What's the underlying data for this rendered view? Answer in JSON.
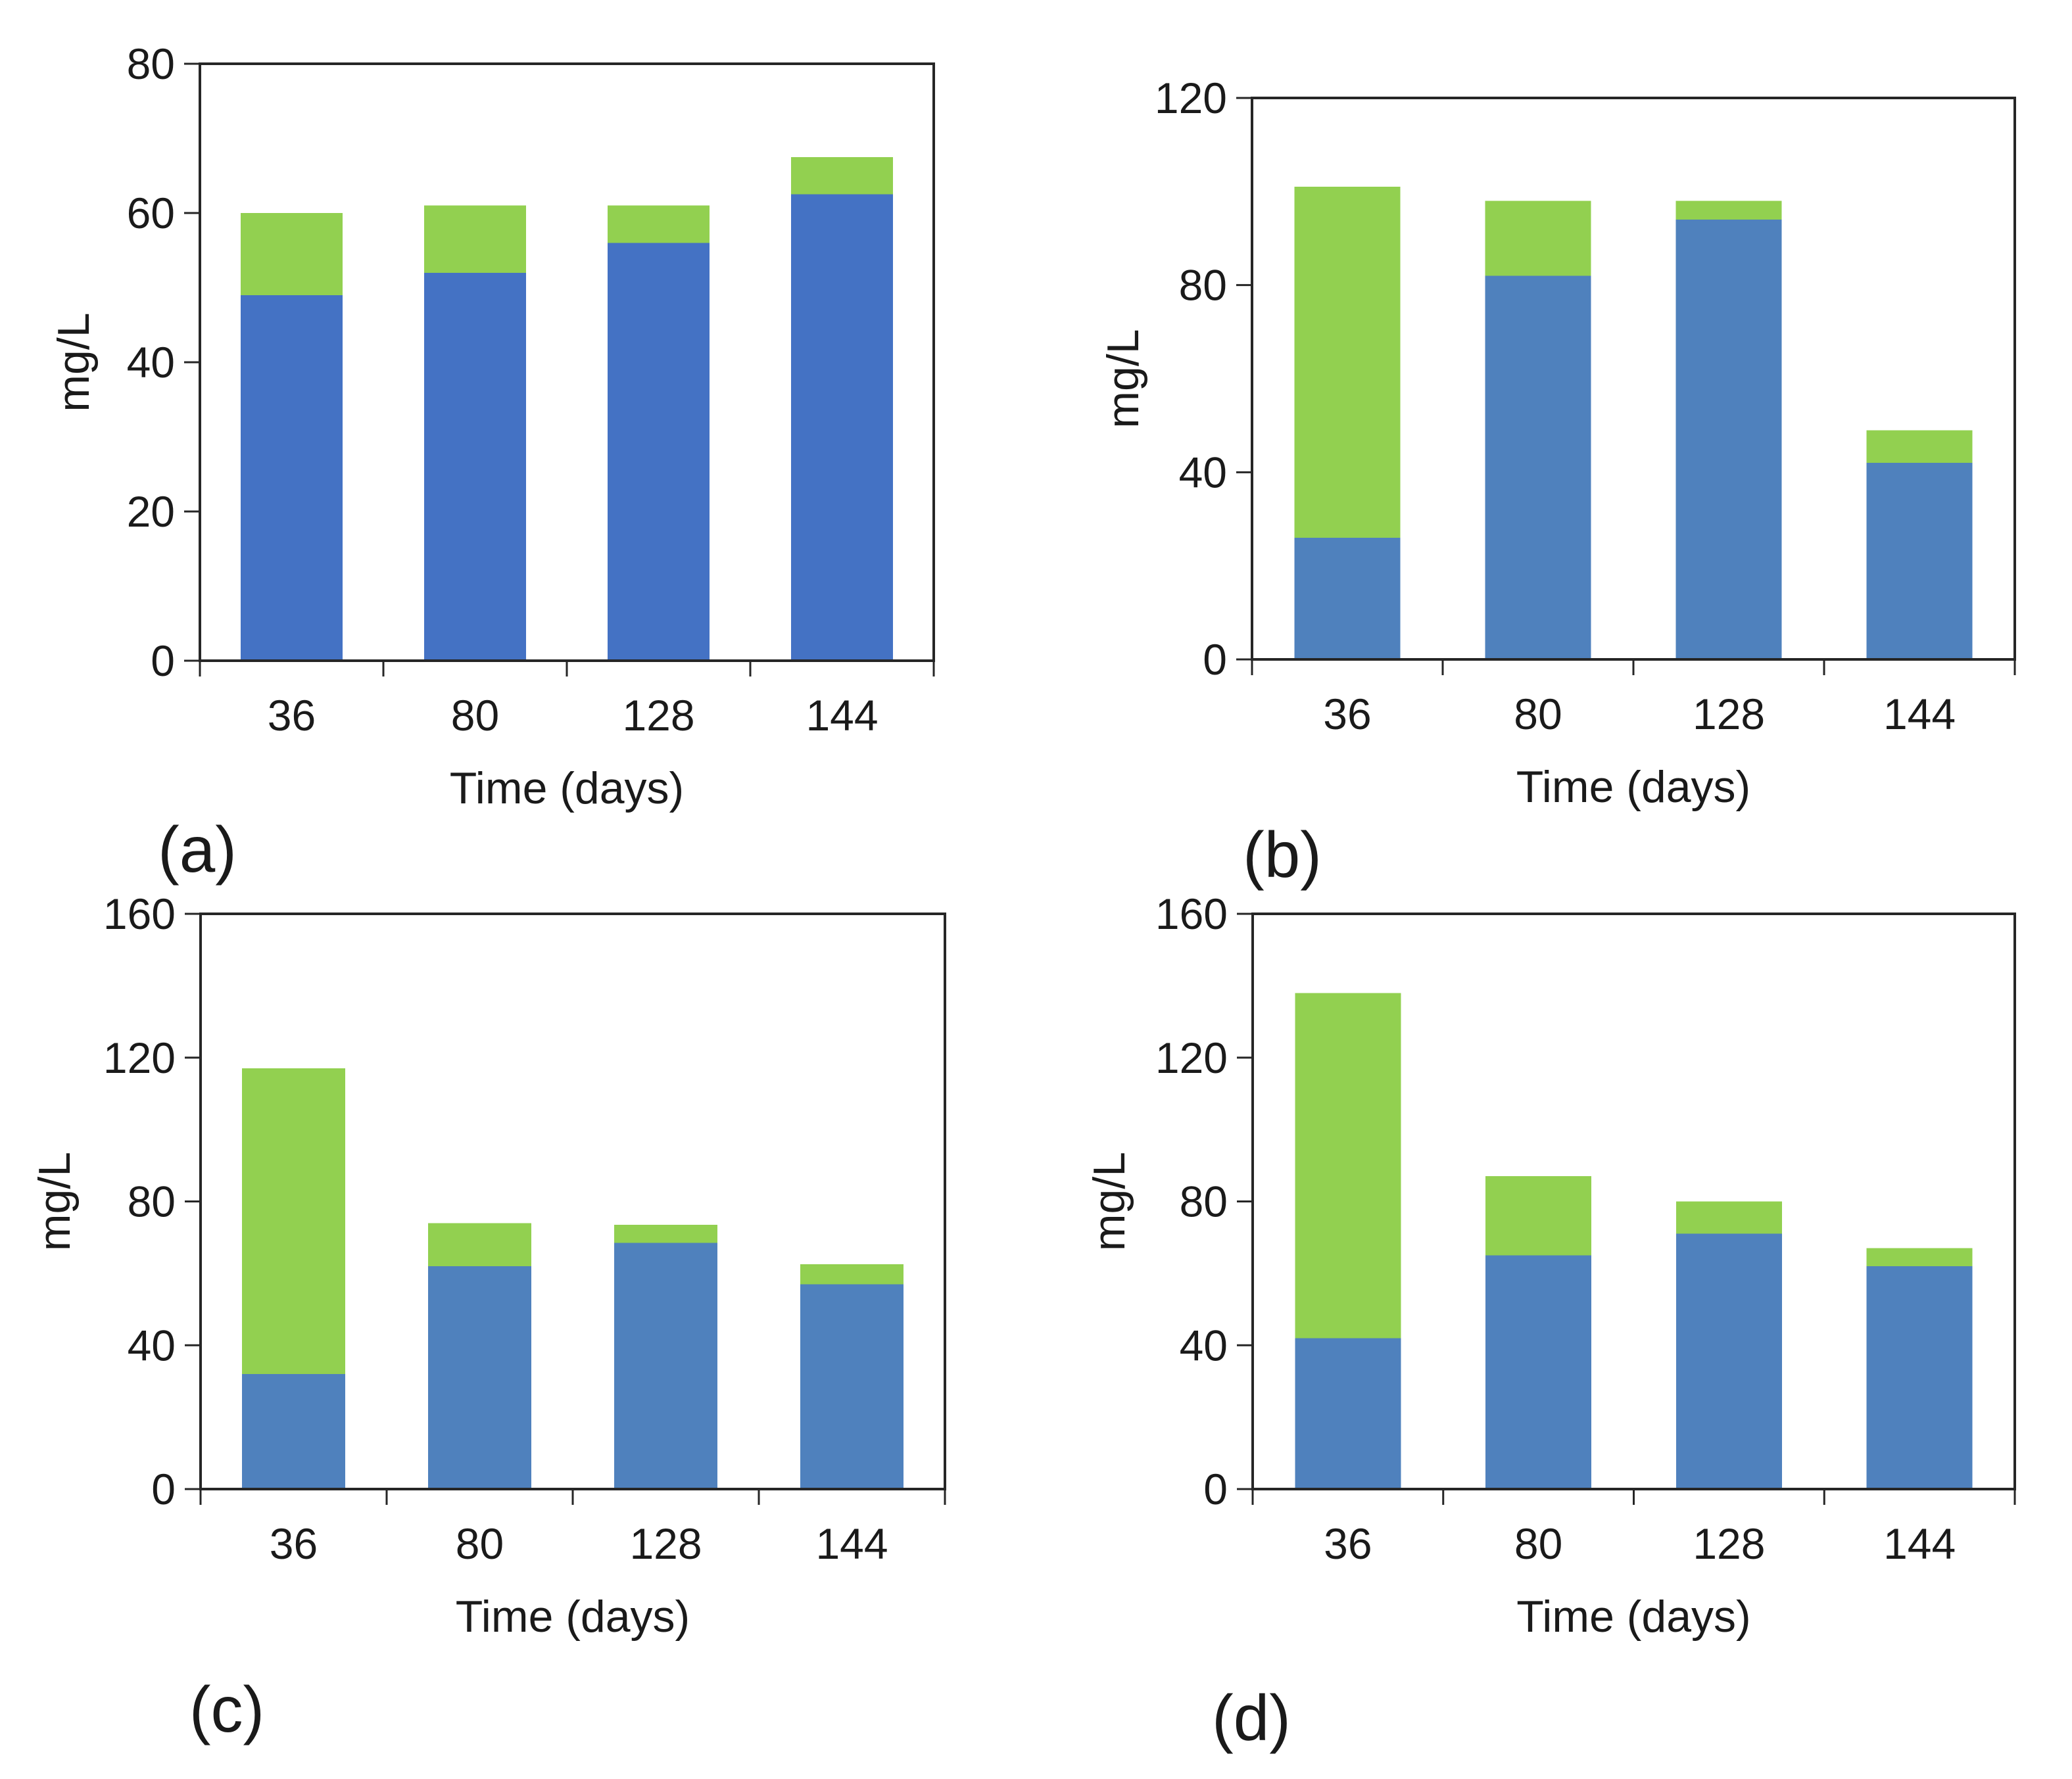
{
  "figure": {
    "background": "#ffffff",
    "description_visible_text_only": true,
    "axis_color": "#262626"
  },
  "chart_data": [
    {
      "id": "a",
      "type": "bar",
      "stacked": true,
      "panel_label": "(a)",
      "title": "",
      "xlabel": "Time (days)",
      "ylabel": "mg/L",
      "categories": [
        "36",
        "80",
        "128",
        "144"
      ],
      "series": [
        {
          "name": "blue-segment",
          "color": "#4472C4",
          "values": [
            49,
            52,
            56,
            62.5
          ]
        },
        {
          "name": "green-segment",
          "color": "#92D050",
          "values": [
            11,
            9,
            5,
            5
          ]
        }
      ],
      "totals": [
        60,
        61,
        61,
        67.5
      ],
      "ylim": [
        0,
        80
      ],
      "yticks": [
        0,
        20,
        40,
        60,
        80
      ],
      "grid": false,
      "legend": "none"
    },
    {
      "id": "b",
      "type": "bar",
      "stacked": true,
      "panel_label": "(b)",
      "title": "",
      "xlabel": "Time (days)",
      "ylabel": "mg/L",
      "categories": [
        "36",
        "80",
        "128",
        "144"
      ],
      "series": [
        {
          "name": "blue-segment",
          "color": "#4F81BD",
          "values": [
            26,
            82,
            94,
            42
          ]
        },
        {
          "name": "green-segment",
          "color": "#92D050",
          "values": [
            75,
            16,
            4,
            7
          ]
        }
      ],
      "totals": [
        101,
        98,
        98,
        49
      ],
      "ylim": [
        0,
        120
      ],
      "yticks": [
        0,
        40,
        80,
        120
      ],
      "grid": false,
      "legend": "none"
    },
    {
      "id": "c",
      "type": "bar",
      "stacked": true,
      "panel_label": "(c)",
      "title": "",
      "xlabel": "Time (days)",
      "ylabel": "mg/L",
      "categories": [
        "36",
        "80",
        "128",
        "144"
      ],
      "series": [
        {
          "name": "blue-segment",
          "color": "#4F81BD",
          "values": [
            32,
            62,
            68.5,
            57
          ]
        },
        {
          "name": "green-segment",
          "color": "#92D050",
          "values": [
            85,
            12,
            5,
            5.5
          ]
        }
      ],
      "totals": [
        117,
        74,
        73.5,
        62.5
      ],
      "ylim": [
        0,
        160
      ],
      "yticks": [
        0,
        40,
        80,
        120,
        160
      ],
      "grid": false,
      "legend": "none"
    },
    {
      "id": "d",
      "type": "bar",
      "stacked": true,
      "panel_label": "(d)",
      "title": "",
      "xlabel": "Time (days)",
      "ylabel": "mg/L",
      "categories": [
        "36",
        "80",
        "128",
        "144"
      ],
      "series": [
        {
          "name": "blue-segment",
          "color": "#4F81BD",
          "values": [
            42,
            65,
            71,
            62
          ]
        },
        {
          "name": "green-segment",
          "color": "#92D050",
          "values": [
            96,
            22,
            9,
            5
          ]
        }
      ],
      "totals": [
        138,
        87,
        80,
        67
      ],
      "ylim": [
        0,
        160
      ],
      "yticks": [
        0,
        40,
        80,
        120,
        160
      ],
      "grid": false,
      "legend": "none"
    }
  ]
}
